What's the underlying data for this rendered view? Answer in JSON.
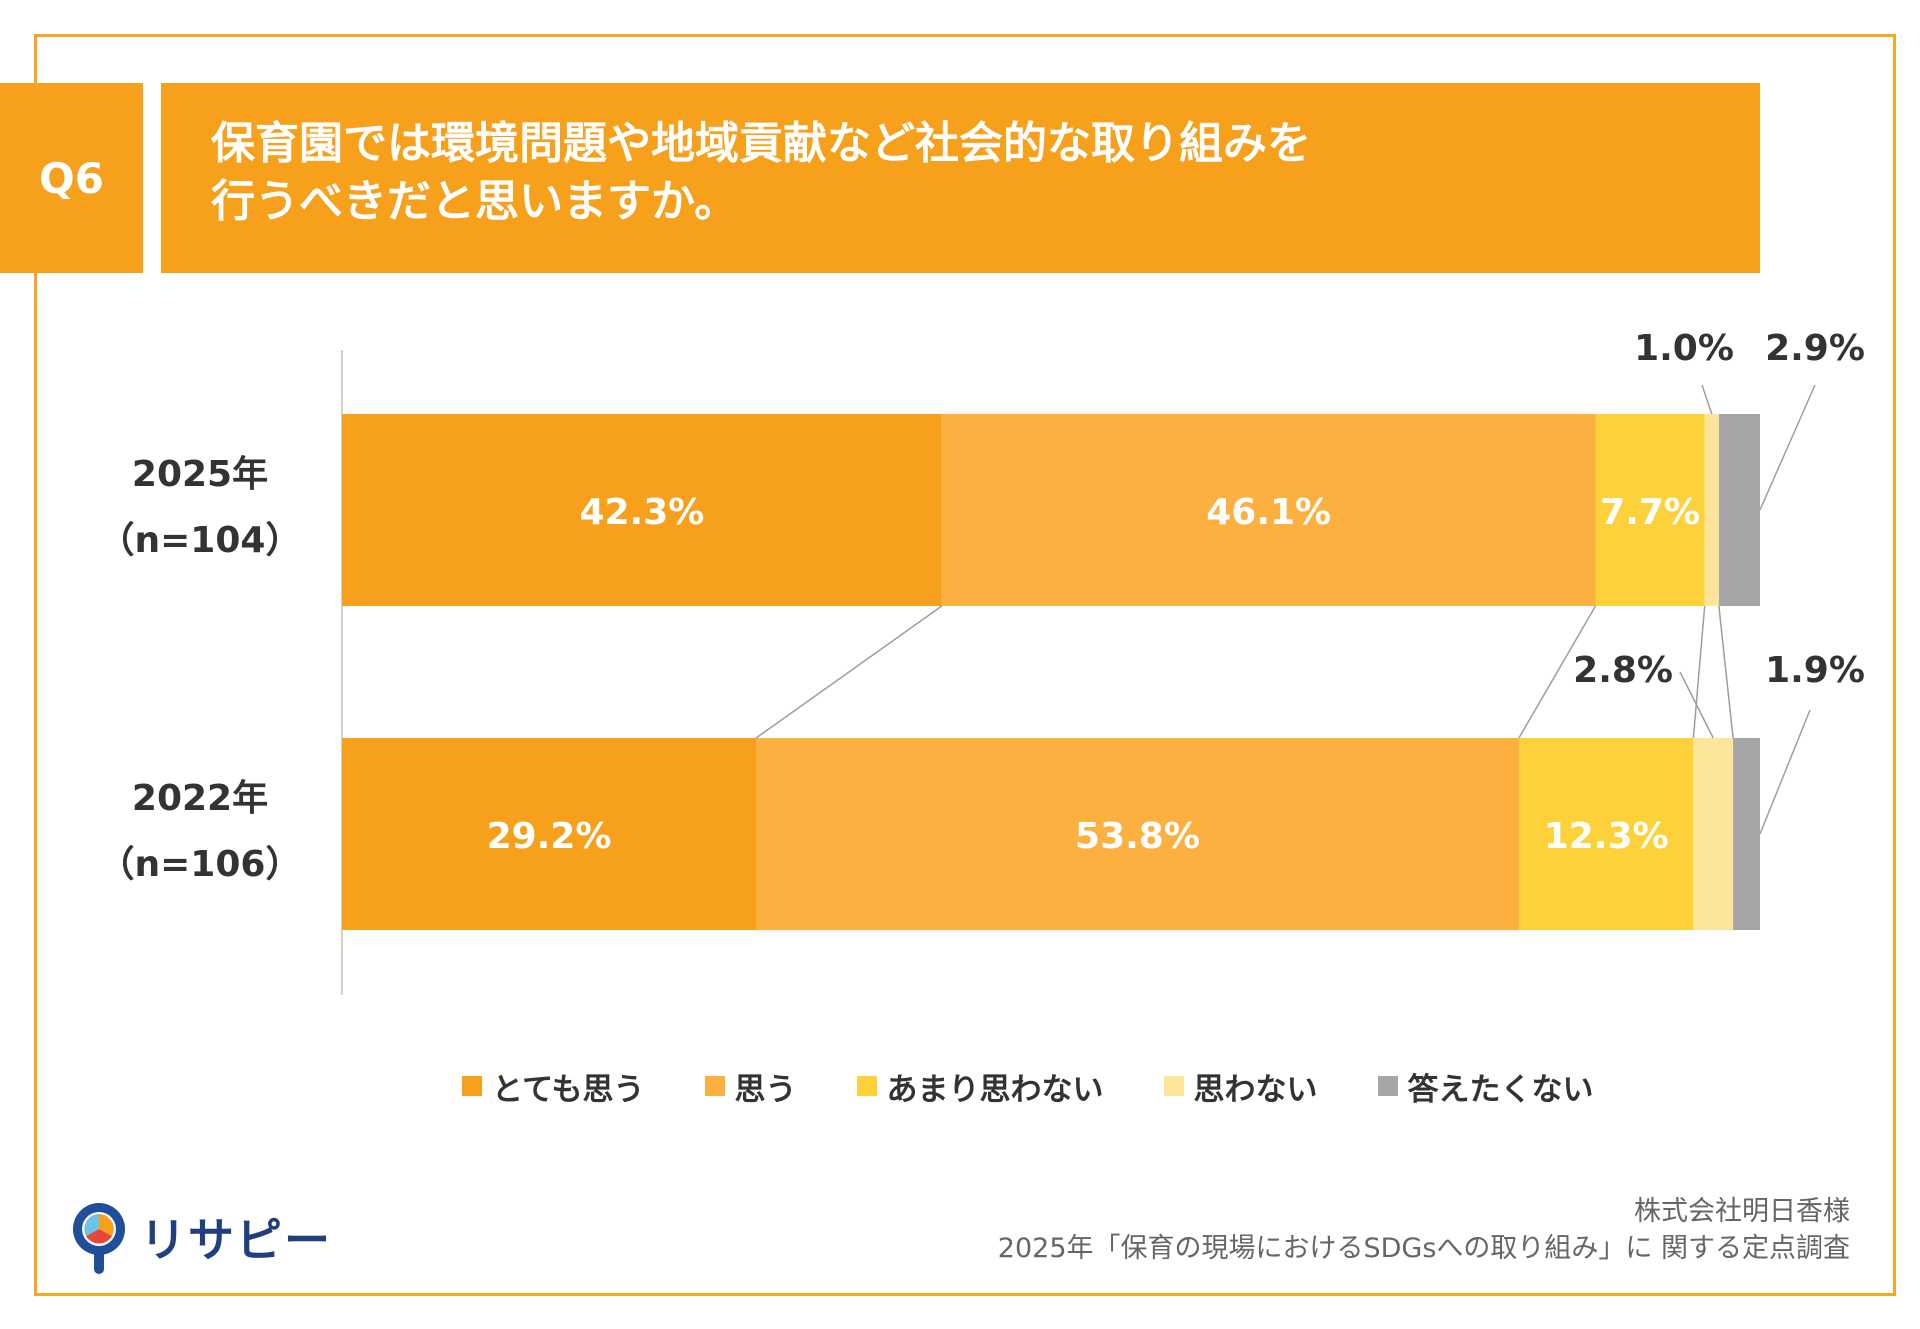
{
  "question": {
    "badge": "Q6",
    "line1": "保育園では環境問題や地域貢献など社会的な取り組みを",
    "line2": "行うべきだと思いますか。"
  },
  "chart_data": {
    "type": "bar",
    "orientation": "horizontal",
    "stacked": "100%",
    "categories": [
      {
        "year": "2025年",
        "n": "（n=104）"
      },
      {
        "year": "2022年",
        "n": "（n=106）"
      }
    ],
    "series": [
      {
        "name": "とても思う",
        "color": "#F7A01C",
        "values": [
          42.3,
          29.2
        ],
        "labels": [
          "42.3%",
          "29.2%"
        ]
      },
      {
        "name": "思う",
        "color": "#FBB040",
        "values": [
          46.1,
          53.8
        ],
        "labels": [
          "46.1%",
          "53.8%"
        ]
      },
      {
        "name": "あまり思わない",
        "color": "#FDD13A",
        "values": [
          7.7,
          12.3
        ],
        "labels": [
          "7.7%",
          "12.3%"
        ]
      },
      {
        "name": "思わない",
        "color": "#FDE69A",
        "values": [
          1.0,
          2.8
        ],
        "labels": [
          "1.0%",
          "2.8%"
        ]
      },
      {
        "name": "答えたくない",
        "color": "#A6A6A6",
        "values": [
          2.9,
          1.9
        ],
        "labels": [
          "2.9%",
          "1.9%"
        ]
      }
    ],
    "xlim": [
      0,
      100
    ],
    "legend_position": "bottom",
    "series_lines": true
  },
  "footer": {
    "logo_text": "リサピー",
    "source_line1": "株式会社明日香様",
    "source_line2": "2025年「保育の現場におけるSDGsへの取り組み」に 関する定点調査"
  }
}
